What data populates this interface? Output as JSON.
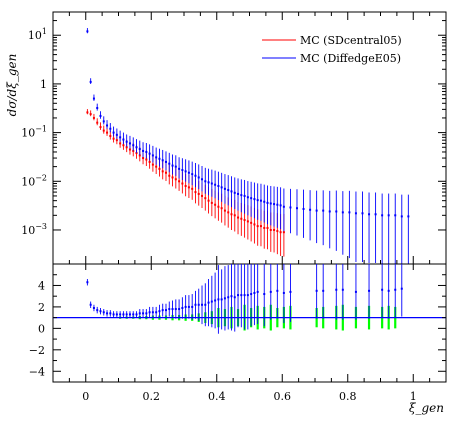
{
  "chart_data": [
    {
      "type": "scatter",
      "panel": "main",
      "ylabel": "dσ/dξ_gen",
      "y_scale": "log",
      "xlim": [
        -0.1,
        1.1
      ],
      "ylim": [
        0.0002,
        30
      ],
      "y_ticks": [
        {
          "value": 0.001,
          "base": "10",
          "exp": "−3"
        },
        {
          "value": 0.01,
          "base": "10",
          "exp": "−2"
        },
        {
          "value": 0.1,
          "base": "10",
          "exp": "−1"
        },
        {
          "value": 1,
          "base": "1",
          "exp": ""
        },
        {
          "value": 10,
          "base": "10",
          "exp": "1"
        }
      ],
      "legend": {
        "placement": "top-right"
      },
      "grid": false,
      "series": [
        {
          "name": "MC (SDcentral05)",
          "color": "#ff0000",
          "x": [
            0.005,
            0.015,
            0.025,
            0.035,
            0.045,
            0.055,
            0.065,
            0.075,
            0.085,
            0.095,
            0.105,
            0.115,
            0.125,
            0.135,
            0.145,
            0.155,
            0.165,
            0.175,
            0.185,
            0.195,
            0.205,
            0.215,
            0.225,
            0.235,
            0.245,
            0.255,
            0.265,
            0.275,
            0.285,
            0.295,
            0.305,
            0.315,
            0.325,
            0.335,
            0.345,
            0.355,
            0.365,
            0.375,
            0.385,
            0.395,
            0.405,
            0.415,
            0.425,
            0.435,
            0.445,
            0.455,
            0.465,
            0.475,
            0.485,
            0.495,
            0.505,
            0.515,
            0.525,
            0.535,
            0.545,
            0.555,
            0.565,
            0.575,
            0.585,
            0.595,
            0.605
          ],
          "y": [
            0.26,
            0.24,
            0.2,
            0.16,
            0.13,
            0.11,
            0.1,
            0.085,
            0.075,
            0.07,
            0.06,
            0.055,
            0.05,
            0.045,
            0.042,
            0.038,
            0.034,
            0.03,
            0.028,
            0.025,
            0.022,
            0.02,
            0.018,
            0.016,
            0.015,
            0.013,
            0.012,
            0.011,
            0.01,
            0.009,
            0.008,
            0.0075,
            0.007,
            0.006,
            0.0055,
            0.005,
            0.0045,
            0.004,
            0.0036,
            0.0033,
            0.003,
            0.0028,
            0.0025,
            0.0023,
            0.0021,
            0.002,
            0.0018,
            0.0017,
            0.0016,
            0.0015,
            0.0014,
            0.0013,
            0.0012,
            0.0012,
            0.0011,
            0.0011,
            0.001,
            0.001,
            0.00095,
            0.0009,
            0.0009
          ]
        },
        {
          "name": "MC (DiffedgeE05)",
          "color": "#0000ff",
          "x": [
            0.005,
            0.015,
            0.025,
            0.035,
            0.045,
            0.055,
            0.065,
            0.075,
            0.085,
            0.095,
            0.105,
            0.115,
            0.125,
            0.135,
            0.145,
            0.155,
            0.165,
            0.175,
            0.185,
            0.195,
            0.205,
            0.215,
            0.225,
            0.235,
            0.245,
            0.255,
            0.265,
            0.275,
            0.285,
            0.295,
            0.305,
            0.315,
            0.325,
            0.335,
            0.345,
            0.355,
            0.365,
            0.375,
            0.385,
            0.395,
            0.405,
            0.415,
            0.425,
            0.435,
            0.445,
            0.455,
            0.465,
            0.475,
            0.485,
            0.495,
            0.505,
            0.515,
            0.525,
            0.535,
            0.545,
            0.555,
            0.565,
            0.575,
            0.585,
            0.595,
            0.605,
            0.625,
            0.645,
            0.665,
            0.685,
            0.705,
            0.725,
            0.745,
            0.765,
            0.785,
            0.805,
            0.825,
            0.845,
            0.865,
            0.885,
            0.905,
            0.925,
            0.945,
            0.965,
            0.985
          ],
          "y": [
            12,
            1.1,
            0.5,
            0.32,
            0.22,
            0.17,
            0.14,
            0.12,
            0.1,
            0.09,
            0.08,
            0.072,
            0.065,
            0.06,
            0.055,
            0.05,
            0.046,
            0.042,
            0.04,
            0.037,
            0.034,
            0.031,
            0.029,
            0.027,
            0.025,
            0.023,
            0.021,
            0.02,
            0.018,
            0.017,
            0.016,
            0.015,
            0.014,
            0.013,
            0.012,
            0.011,
            0.01,
            0.0095,
            0.009,
            0.0085,
            0.008,
            0.0075,
            0.007,
            0.0066,
            0.0062,
            0.0058,
            0.0055,
            0.0052,
            0.005,
            0.0047,
            0.0045,
            0.0043,
            0.0041,
            0.004,
            0.0038,
            0.0036,
            0.0035,
            0.0034,
            0.0033,
            0.0032,
            0.003,
            0.0029,
            0.0028,
            0.0027,
            0.0026,
            0.0025,
            0.0025,
            0.0024,
            0.0024,
            0.0023,
            0.0023,
            0.0022,
            0.0022,
            0.0021,
            0.0021,
            0.002,
            0.002,
            0.002,
            0.0019,
            0.0019
          ]
        }
      ]
    },
    {
      "type": "scatter",
      "panel": "ratio",
      "xlabel": "ξ_gen",
      "xlim": [
        -0.1,
        1.1
      ],
      "ylim": [
        -5,
        6
      ],
      "x_ticks": [
        0,
        0.2,
        0.4,
        0.6,
        0.8,
        1
      ],
      "x_tick_labels": [
        "0",
        "0.2",
        "0.4",
        "0.6",
        "0.8",
        "1"
      ],
      "y_ticks": [
        -4,
        -2,
        0,
        2,
        4
      ],
      "y_tick_labels": [
        "−4",
        "−2",
        "0",
        "2",
        "4"
      ],
      "reference_line": {
        "y": 1,
        "color": "#0000ff"
      },
      "series": [
        {
          "color": "#00ff00",
          "x": [
            0.105,
            0.125,
            0.145,
            0.165,
            0.185,
            0.205,
            0.225,
            0.245,
            0.265,
            0.285,
            0.305,
            0.325,
            0.345,
            0.365,
            0.385,
            0.405,
            0.425,
            0.445,
            0.465,
            0.485,
            0.505,
            0.525,
            0.545,
            0.565,
            0.585,
            0.605,
            0.625,
            0.705,
            0.725,
            0.765,
            0.785,
            0.825,
            0.865,
            0.905,
            0.925,
            0.945
          ],
          "y": [
            1,
            1,
            1,
            1,
            1,
            1,
            1,
            1,
            1,
            1,
            1,
            1,
            1,
            1,
            1,
            1,
            1,
            1,
            1,
            1,
            1,
            1,
            1,
            1,
            1,
            1,
            1,
            1,
            1,
            1,
            1,
            1,
            1,
            1,
            1,
            1
          ],
          "err": [
            0.1,
            0.1,
            0.1,
            0.15,
            0.15,
            0.2,
            0.2,
            0.2,
            0.25,
            0.25,
            0.3,
            0.3,
            0.4,
            0.5,
            0.6,
            0.9,
            0.8,
            1.0,
            0.8,
            1.2,
            0.9,
            1.1,
            1.0,
            1.2,
            0.9,
            1.0,
            1.1,
            0.9,
            1.0,
            1.1,
            1.2,
            1.0,
            1.1,
            1.0,
            1.1,
            1.0
          ]
        },
        {
          "color": "#0000ff",
          "x": [
            0.005,
            0.015,
            0.025,
            0.035,
            0.045,
            0.055,
            0.065,
            0.075,
            0.085,
            0.095,
            0.105,
            0.115,
            0.125,
            0.135,
            0.145,
            0.155,
            0.165,
            0.175,
            0.185,
            0.195,
            0.205,
            0.215,
            0.225,
            0.235,
            0.245,
            0.255,
            0.265,
            0.275,
            0.285,
            0.295,
            0.305,
            0.315,
            0.325,
            0.335,
            0.345,
            0.355,
            0.365,
            0.375,
            0.385,
            0.395,
            0.405,
            0.415,
            0.425,
            0.435,
            0.445,
            0.455,
            0.465,
            0.475,
            0.485,
            0.495,
            0.505,
            0.515,
            0.525,
            0.545,
            0.565,
            0.585,
            0.605,
            0.625,
            0.705,
            0.725,
            0.765,
            0.785,
            0.825,
            0.865,
            0.905,
            0.925,
            0.945,
            0.965
          ],
          "y": [
            4.3,
            2.2,
            1.9,
            1.7,
            1.6,
            1.5,
            1.4,
            1.4,
            1.3,
            1.3,
            1.3,
            1.3,
            1.3,
            1.3,
            1.3,
            1.3,
            1.4,
            1.4,
            1.4,
            1.5,
            1.5,
            1.5,
            1.6,
            1.7,
            1.7,
            1.8,
            1.8,
            1.8,
            1.8,
            1.9,
            2.0,
            2.0,
            2.0,
            2.2,
            2.2,
            2.2,
            2.2,
            2.4,
            2.5,
            2.6,
            2.7,
            2.7,
            2.8,
            2.9,
            3.0,
            2.9,
            3.1,
            3.1,
            3.1,
            3.1,
            3.2,
            3.3,
            3.4,
            3.2,
            3.4,
            3.5,
            3.3,
            3.4,
            3.5,
            3.5,
            3.6,
            3.6,
            3.4,
            3.5,
            3.6,
            3.5,
            3.6,
            3.7
          ],
          "err": [
            0.3,
            0.3,
            0.3,
            0.3,
            0.3,
            0.3,
            0.3,
            0.3,
            0.3,
            0.3,
            0.3,
            0.3,
            0.3,
            0.3,
            0.3,
            0.3,
            0.4,
            0.4,
            0.4,
            0.5,
            0.5,
            0.5,
            0.6,
            0.6,
            0.6,
            0.7,
            0.8,
            0.9,
            0.9,
            1.0,
            1.1,
            1.1,
            1.2,
            1.3,
            1.5,
            1.8,
            2.0,
            2.2,
            2.4,
            2.6,
            3.2,
            2.8,
            3.0,
            3.0,
            3.2,
            3.2,
            3.0,
            3.0,
            3.2,
            3.2,
            3.0,
            3.0,
            3.0,
            3.0,
            2.6,
            2.6,
            2.8,
            2.8,
            2.6,
            2.6,
            2.8,
            2.8,
            2.6,
            2.6,
            2.6,
            2.6,
            2.6,
            2.6
          ]
        }
      ]
    }
  ]
}
